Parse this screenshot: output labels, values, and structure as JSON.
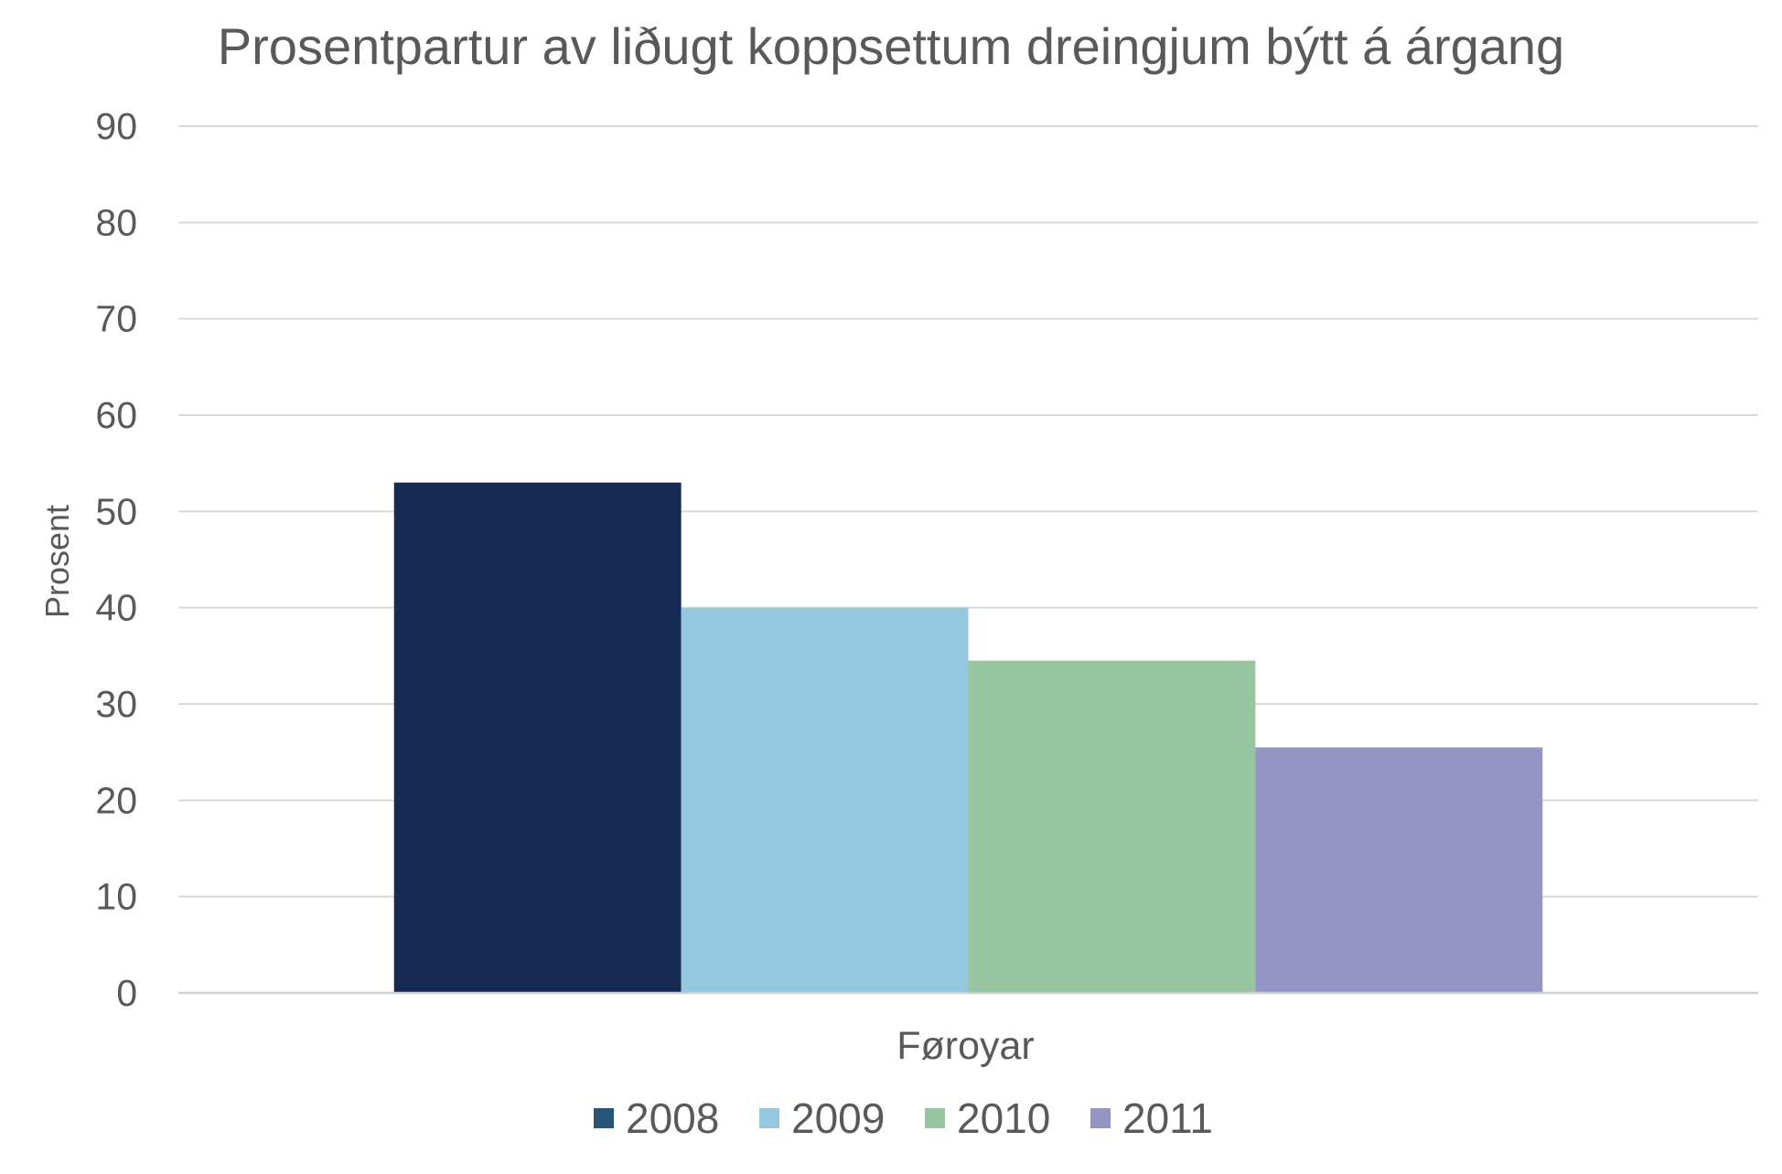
{
  "chart_data": {
    "type": "bar",
    "title": "Prosentpartur av liðugt koppsettum dreingjum býtt á árgang",
    "xlabel": "",
    "ylabel": "Prosent",
    "categories": [
      "Føroyar"
    ],
    "ylim": [
      0,
      90
    ],
    "yticks": [
      "0",
      "10",
      "20",
      "30",
      "40",
      "50",
      "60",
      "70",
      "80",
      "90"
    ],
    "grid": true,
    "legend_position": "bottom",
    "series": [
      {
        "name": "2008",
        "values": [
          53
        ],
        "color": "#142a55"
      },
      {
        "name": "2009",
        "values": [
          40
        ],
        "color": "#94c8df"
      },
      {
        "name": "2010",
        "values": [
          34.5
        ],
        "color": "#97c5a0"
      },
      {
        "name": "2011",
        "values": [
          25.5
        ],
        "color": "#9595c5"
      }
    ],
    "legend_swatch_colors": [
      "#27557a",
      "#94c8df",
      "#97c5a0",
      "#9595c5"
    ]
  }
}
